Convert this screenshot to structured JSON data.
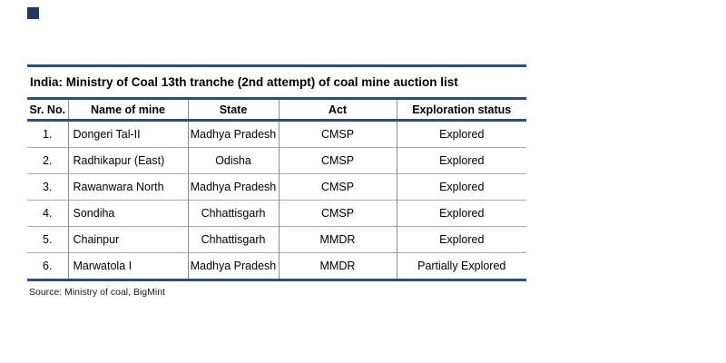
{
  "colors": {
    "accent_rule_blue": "#1b4f9e",
    "grid_line_vertical": "#8c8c8c",
    "grid_line_horizontal": "#a9a9a9",
    "logo_square_navy": "#1f3864",
    "text_black": "#000000"
  },
  "chart_data": {
    "type": "table",
    "title": "India: Ministry of Coal 13th tranche (2nd attempt) of coal mine auction list",
    "columns": [
      "Sr. No.",
      "Name of mine",
      "State",
      "Act",
      "Exploration status"
    ],
    "rows": [
      [
        "1.",
        "Dongeri Tal-II",
        "Madhya Pradesh",
        "CMSP",
        "Explored"
      ],
      [
        "2.",
        "Radhikapur (East)",
        "Odisha",
        "CMSP",
        "Explored"
      ],
      [
        "3.",
        "Rawanwara North",
        "Madhya Pradesh",
        "CMSP",
        "Explored"
      ],
      [
        "4.",
        "Sondiha",
        "Chhattisgarh",
        "CMSP",
        "Explored"
      ],
      [
        "5.",
        "Chainpur",
        "Chhattisgarh",
        "MMDR",
        "Explored"
      ],
      [
        "6.",
        "Marwatola I",
        "Madhya Pradesh",
        "MMDR",
        "Partially Explored"
      ]
    ],
    "source_note": "Source: Ministry of coal, BigMint"
  }
}
